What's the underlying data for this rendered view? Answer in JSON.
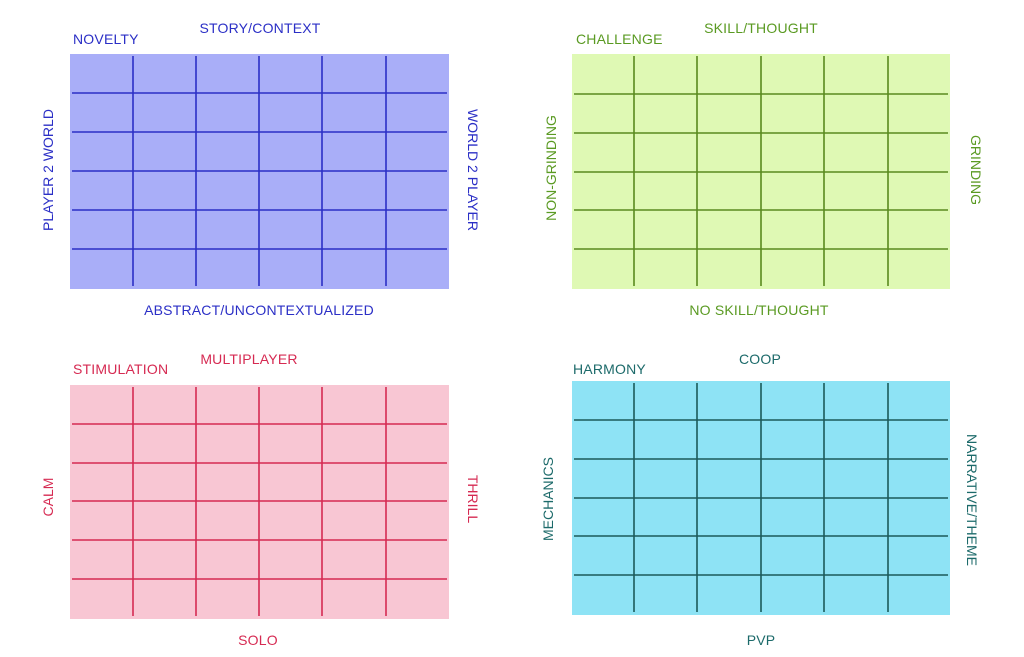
{
  "quadrants": {
    "q1": {
      "color_fill": "#a9aef8",
      "color_line": "#2b2fc6",
      "color_text": "#2b2fc6",
      "top_label": "STORY/CONTEXT",
      "corner_label": "NOVELTY",
      "bottom_label": "ABSTRACT/UNCONTEXTUALIZED",
      "left_label": "PLAYER 2 WORLD",
      "right_label": "WORLD 2 PLAYER"
    },
    "q2": {
      "color_fill": "#dff9b4",
      "color_line": "#5a8a1e",
      "color_text": "#5a9a22",
      "top_label": "SKILL/THOUGHT",
      "corner_label": "CHALLENGE",
      "bottom_label": "NO SKILL/THOUGHT",
      "left_label": "NON-GRINDING",
      "right_label": "GRINDING"
    },
    "q3": {
      "color_fill": "#f8c6d3",
      "color_line": "#d62a52",
      "color_text": "#d62a52",
      "top_label": "MULTIPLAYER",
      "corner_label": "STIMULATION",
      "bottom_label": "SOLO",
      "left_label": "CALM",
      "right_label": "THRILL"
    },
    "q4": {
      "color_fill": "#8ee3f5",
      "color_line": "#1c5a5a",
      "color_text": "#1c6a6a",
      "top_label": "COOP",
      "corner_label": "HARMONY",
      "bottom_label": "PVP",
      "left_label": "MECHANICS",
      "right_label": "NARRATIVE/THEME"
    }
  }
}
